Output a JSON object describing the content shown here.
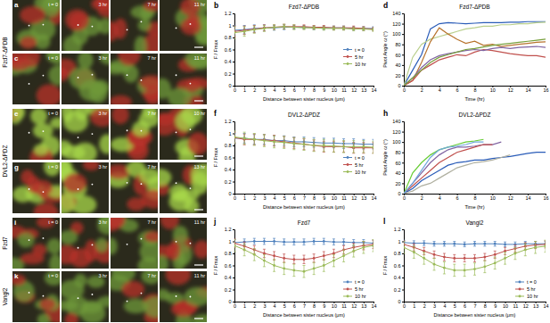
{
  "image_groups": [
    {
      "label": "Fzd7-ΔPDB",
      "panels": [
        {
          "letter": "a",
          "times": [
            "t = 0",
            "3 hr",
            "7 hr",
            "11 hr"
          ]
        },
        {
          "letter": "c",
          "times": [
            "t = 0",
            "3 hr",
            "7 hr",
            "11 hr"
          ]
        }
      ]
    },
    {
      "label": "DVL2-ΔPDZ",
      "panels": [
        {
          "letter": "e",
          "times": [
            "t = 0",
            "3 hr",
            "7 hr",
            "10 hr"
          ]
        },
        {
          "letter": "g",
          "times": [
            "t = 0",
            "3 hr",
            "7 hr",
            "13 hr"
          ]
        }
      ]
    },
    {
      "label": "Fzd7",
      "panels": [
        {
          "letter": "i",
          "times": [
            "t = 0",
            "3 hr",
            "7 hr",
            "11 hr"
          ]
        }
      ]
    },
    {
      "label": "Vangl2",
      "panels": [
        {
          "letter": "k",
          "times": [
            "t = 0",
            "3 hr",
            "7 hr",
            "11 hr"
          ]
        }
      ]
    }
  ],
  "chart_data": [
    {
      "type": "line",
      "panel": "b",
      "title": "Fzd7-ΔPDB",
      "x_label": "Distance between sister nucleus (μm)",
      "y_label": "F / Fmax",
      "x": [
        0,
        1,
        2,
        3,
        4,
        5,
        6,
        7,
        8,
        9,
        10,
        11,
        12,
        13,
        14
      ],
      "xlim": [
        0,
        14
      ],
      "xticks": [
        0,
        1,
        2,
        3,
        4,
        5,
        6,
        7,
        8,
        9,
        10,
        11,
        12,
        13,
        14
      ],
      "ylim": [
        0,
        1.2
      ],
      "yticks": [
        0,
        0.2,
        0.4,
        0.6,
        0.8,
        1,
        1.2
      ],
      "grid": false,
      "legend": "right",
      "marker": "circle",
      "series": [
        {
          "name": "t = 0",
          "color": "#4f81bd",
          "values": [
            0.92,
            0.93,
            0.95,
            0.96,
            0.96,
            0.97,
            0.97,
            0.97,
            0.96,
            0.96,
            0.96,
            0.96,
            0.95,
            0.95,
            0.95
          ],
          "errors": [
            0.08,
            0.07,
            0.06,
            0.05,
            0.04,
            0.04,
            0.03,
            0.03,
            0.03,
            0.03,
            0.03,
            0.03,
            0.03,
            0.03,
            0.03
          ]
        },
        {
          "name": "5 hr",
          "color": "#c0504d",
          "values": [
            0.9,
            0.92,
            0.94,
            0.96,
            0.97,
            0.98,
            0.98,
            0.98,
            0.97,
            0.97,
            0.96,
            0.96,
            0.96,
            0.95,
            0.94
          ],
          "errors": [
            0.09,
            0.07,
            0.06,
            0.05,
            0.04,
            0.04,
            0.03,
            0.03,
            0.03,
            0.03,
            0.03,
            0.03,
            0.03,
            0.03,
            0.03
          ]
        },
        {
          "name": "10 hr",
          "color": "#9bbb59",
          "values": [
            0.88,
            0.9,
            0.93,
            0.95,
            0.97,
            0.98,
            0.97,
            0.96,
            0.96,
            0.95,
            0.95,
            0.95,
            0.94,
            0.94,
            0.93
          ],
          "errors": [
            0.1,
            0.08,
            0.06,
            0.05,
            0.04,
            0.04,
            0.04,
            0.03,
            0.03,
            0.03,
            0.03,
            0.03,
            0.03,
            0.03,
            0.03
          ]
        }
      ]
    },
    {
      "type": "line",
      "panel": "d",
      "title": "Fzd7-ΔPDB",
      "x_label": "Time (hr)",
      "y_label": "Pivot Angle ω (°)",
      "x": [
        0,
        1,
        2,
        3,
        4,
        5,
        6,
        7,
        8,
        9,
        10,
        11,
        12,
        13,
        14,
        15,
        16
      ],
      "xlim": [
        0,
        16
      ],
      "xticks": [
        0,
        2,
        4,
        6,
        8,
        10,
        12,
        14,
        16
      ],
      "ylim": [
        0,
        140
      ],
      "yticks": [
        0,
        20,
        40,
        60,
        80,
        100,
        120,
        140
      ],
      "grid": false,
      "marker": "none",
      "series": [
        {
          "color": "#2a5cb8",
          "values": [
            0,
            30,
            60,
            110,
            120,
            122,
            121,
            120,
            121,
            122,
            122,
            122,
            123,
            123,
            124,
            124,
            124
          ]
        },
        {
          "color": "#b9cf8c",
          "values": [
            0,
            55,
            80,
            90,
            95,
            100,
            105,
            110,
            112,
            115,
            115,
            118,
            118,
            120,
            120,
            122,
            123
          ]
        },
        {
          "color": "#b8742e",
          "values": [
            0,
            10,
            45,
            85,
            112,
            100,
            90,
            82,
            86,
            78,
            80,
            76,
            78,
            80,
            82,
            84,
            85
          ]
        },
        {
          "color": "#c0504d",
          "values": [
            0,
            10,
            30,
            40,
            50,
            55,
            60,
            58,
            65,
            70,
            68,
            65,
            62,
            60,
            58,
            58,
            55
          ]
        },
        {
          "color": "#8064a2",
          "values": [
            0,
            15,
            35,
            50,
            58,
            62,
            65,
            68,
            70,
            68,
            72,
            74,
            72,
            74,
            75,
            76,
            74
          ]
        },
        {
          "color": "#77a03c",
          "values": [
            0,
            15,
            30,
            45,
            55,
            60,
            65,
            70,
            72,
            75,
            78,
            80,
            82,
            84,
            86,
            88,
            90
          ]
        }
      ]
    },
    {
      "type": "line",
      "panel": "f",
      "title": "DVL2-ΔPDZ",
      "x_label": "Distance between sister nucleus (μm)",
      "y_label": "F / Fmax",
      "x": [
        0,
        1,
        2,
        3,
        4,
        5,
        6,
        7,
        8,
        9,
        10,
        11,
        12,
        13,
        14
      ],
      "xlim": [
        0,
        14
      ],
      "xticks": [
        0,
        1,
        2,
        3,
        4,
        5,
        6,
        7,
        8,
        9,
        10,
        11,
        12,
        13,
        14
      ],
      "ylim": [
        0,
        1.2
      ],
      "yticks": [
        0,
        0.2,
        0.4,
        0.6,
        0.8,
        1,
        1.2
      ],
      "grid": false,
      "legend": "right",
      "marker": "circle",
      "series": [
        {
          "name": "t = 0",
          "color": "#4f81bd",
          "values": [
            0.92,
            0.92,
            0.9,
            0.9,
            0.88,
            0.88,
            0.86,
            0.86,
            0.85,
            0.84,
            0.84,
            0.83,
            0.83,
            0.82,
            0.82
          ],
          "errors": [
            0.08,
            0.08,
            0.08,
            0.08,
            0.08,
            0.08,
            0.08,
            0.08,
            0.08,
            0.08,
            0.08,
            0.08,
            0.08,
            0.08,
            0.08
          ]
        },
        {
          "name": "5 hr",
          "color": "#c0504d",
          "values": [
            0.93,
            0.9,
            0.9,
            0.89,
            0.88,
            0.86,
            0.84,
            0.82,
            0.8,
            0.78,
            0.78,
            0.78,
            0.76,
            0.76,
            0.76
          ],
          "errors": [
            0.09,
            0.09,
            0.09,
            0.09,
            0.09,
            0.09,
            0.09,
            0.09,
            0.09,
            0.09,
            0.09,
            0.09,
            0.09,
            0.09,
            0.09
          ]
        },
        {
          "name": "10 hr",
          "color": "#9bbb59",
          "values": [
            0.94,
            0.92,
            0.9,
            0.88,
            0.86,
            0.85,
            0.83,
            0.82,
            0.8,
            0.8,
            0.79,
            0.78,
            0.78,
            0.78,
            0.77
          ],
          "errors": [
            0.1,
            0.1,
            0.1,
            0.1,
            0.1,
            0.1,
            0.1,
            0.1,
            0.1,
            0.1,
            0.1,
            0.1,
            0.1,
            0.1,
            0.1
          ]
        }
      ]
    },
    {
      "type": "line",
      "panel": "h",
      "title": "DVL2-ΔPDZ",
      "x_label": "Time (hr)",
      "y_label": "Pivot Angle ω (°)",
      "x": [
        0,
        1,
        2,
        3,
        4,
        5,
        6,
        7,
        8,
        9,
        10,
        11,
        12,
        13,
        14,
        15,
        16
      ],
      "xlim": [
        0,
        16
      ],
      "xticks": [
        0,
        2,
        4,
        6,
        8,
        10,
        12,
        14,
        16
      ],
      "ylim": [
        0,
        140
      ],
      "yticks": [
        0,
        20,
        40,
        60,
        80,
        100,
        120,
        140
      ],
      "grid": false,
      "marker": "none",
      "series": [
        {
          "color": "#66cc33",
          "values": [
            0,
            40,
            60,
            75,
            85,
            90,
            95,
            100,
            102,
            105,
            null,
            null,
            null,
            null,
            null,
            null,
            null
          ]
        },
        {
          "color": "#8064a2",
          "values": [
            0,
            20,
            40,
            60,
            75,
            85,
            90,
            90,
            92,
            95,
            95,
            100,
            null,
            null,
            null,
            null,
            null
          ]
        },
        {
          "color": "#c0504d",
          "values": [
            0,
            15,
            30,
            45,
            60,
            70,
            80,
            85,
            90,
            95,
            95,
            null,
            null,
            null,
            null,
            null,
            null
          ]
        },
        {
          "color": "#2a5cb8",
          "values": [
            0,
            10,
            25,
            35,
            45,
            55,
            60,
            62,
            65,
            65,
            68,
            70,
            72,
            75,
            78,
            80,
            80
          ]
        },
        {
          "color": "#b0b0a0",
          "values": [
            0,
            5,
            15,
            20,
            30,
            40,
            50,
            55,
            60,
            62,
            65,
            70,
            75,
            null,
            null,
            null,
            null
          ]
        },
        {
          "color": "#6fa8dc",
          "values": [
            0,
            20,
            45,
            70,
            85,
            90,
            92,
            95,
            100,
            100,
            null,
            null,
            null,
            null,
            null,
            null,
            null
          ]
        }
      ]
    },
    {
      "type": "line",
      "panel": "j",
      "title": "Fzd7",
      "x_label": "Distance between sister nucleus (μm)",
      "y_label": "F / Fmax",
      "x": [
        0,
        1,
        2,
        3,
        4,
        5,
        6,
        7,
        8,
        9,
        10,
        11,
        12,
        13,
        14
      ],
      "xlim": [
        0,
        14
      ],
      "xticks": [
        0,
        1,
        2,
        3,
        4,
        5,
        6,
        7,
        8,
        9,
        10,
        11,
        12,
        13,
        14
      ],
      "ylim": [
        0,
        1.2
      ],
      "yticks": [
        0,
        0.2,
        0.4,
        0.6,
        0.8,
        1,
        1.2
      ],
      "grid": false,
      "legend": "bottom-right",
      "marker": "circle",
      "series": [
        {
          "name": "t = 0",
          "color": "#4f81bd",
          "values": [
            0.98,
            0.99,
            1,
            1,
            1,
            0.99,
            0.99,
            0.99,
            1,
            1,
            0.99,
            0.99,
            0.98,
            0.98,
            0.97
          ],
          "errors": [
            0.05,
            0.05,
            0.05,
            0.05,
            0.05,
            0.05,
            0.05,
            0.05,
            0.05,
            0.05,
            0.05,
            0.05,
            0.05,
            0.05,
            0.05
          ]
        },
        {
          "name": "5 hr",
          "color": "#c0504d",
          "values": [
            0.97,
            0.92,
            0.86,
            0.8,
            0.76,
            0.72,
            0.7,
            0.7,
            0.72,
            0.76,
            0.8,
            0.86,
            0.9,
            0.93,
            0.95
          ],
          "errors": [
            0.07,
            0.07,
            0.07,
            0.07,
            0.07,
            0.07,
            0.07,
            0.07,
            0.07,
            0.07,
            0.07,
            0.07,
            0.07,
            0.07,
            0.07
          ]
        },
        {
          "name": "10 hr",
          "color": "#9bbb59",
          "values": [
            0.93,
            0.86,
            0.78,
            0.68,
            0.6,
            0.55,
            0.52,
            0.5,
            0.55,
            0.6,
            0.68,
            0.76,
            0.84,
            0.9,
            0.93
          ],
          "errors": [
            0.1,
            0.1,
            0.1,
            0.1,
            0.1,
            0.1,
            0.1,
            0.1,
            0.1,
            0.1,
            0.1,
            0.1,
            0.1,
            0.1,
            0.1
          ]
        }
      ]
    },
    {
      "type": "line",
      "panel": "l",
      "title": "Vangl2",
      "x_label": "Distance between sister nucleus (μm)",
      "y_label": "F / Fmax",
      "x": [
        0,
        1,
        2,
        3,
        4,
        5,
        6,
        7,
        8,
        9,
        10,
        11,
        12,
        13,
        14
      ],
      "xlim": [
        0,
        14
      ],
      "xticks": [
        0,
        1,
        2,
        3,
        4,
        5,
        6,
        7,
        8,
        9,
        10,
        11,
        12,
        13,
        14
      ],
      "ylim": [
        0,
        1.2
      ],
      "yticks": [
        0,
        0.2,
        0.4,
        0.6,
        0.8,
        1,
        1.2
      ],
      "grid": false,
      "legend": "bottom-right",
      "marker": "circle",
      "series": [
        {
          "name": "t = 0",
          "color": "#4f81bd",
          "values": [
            0.98,
            0.97,
            0.97,
            0.96,
            0.96,
            0.96,
            0.95,
            0.96,
            0.96,
            0.96,
            0.95,
            0.95,
            0.96,
            0.96,
            0.96
          ],
          "errors": [
            0.04,
            0.04,
            0.04,
            0.04,
            0.04,
            0.04,
            0.04,
            0.04,
            0.04,
            0.04,
            0.04,
            0.04,
            0.04,
            0.04,
            0.04
          ]
        },
        {
          "name": "5 hr",
          "color": "#c0504d",
          "values": [
            0.95,
            0.9,
            0.84,
            0.78,
            0.74,
            0.72,
            0.72,
            0.72,
            0.74,
            0.78,
            0.84,
            0.88,
            0.92,
            0.94,
            0.95
          ],
          "errors": [
            0.06,
            0.06,
            0.06,
            0.06,
            0.06,
            0.06,
            0.06,
            0.06,
            0.06,
            0.06,
            0.06,
            0.06,
            0.06,
            0.06,
            0.06
          ]
        },
        {
          "name": "10 hr",
          "color": "#9bbb59",
          "values": [
            0.9,
            0.82,
            0.72,
            0.62,
            0.56,
            0.52,
            0.52,
            0.54,
            0.58,
            0.64,
            0.72,
            0.8,
            0.86,
            0.9,
            0.92
          ],
          "errors": [
            0.1,
            0.1,
            0.1,
            0.1,
            0.1,
            0.1,
            0.1,
            0.1,
            0.1,
            0.1,
            0.1,
            0.1,
            0.1,
            0.1,
            0.1
          ]
        }
      ]
    }
  ]
}
